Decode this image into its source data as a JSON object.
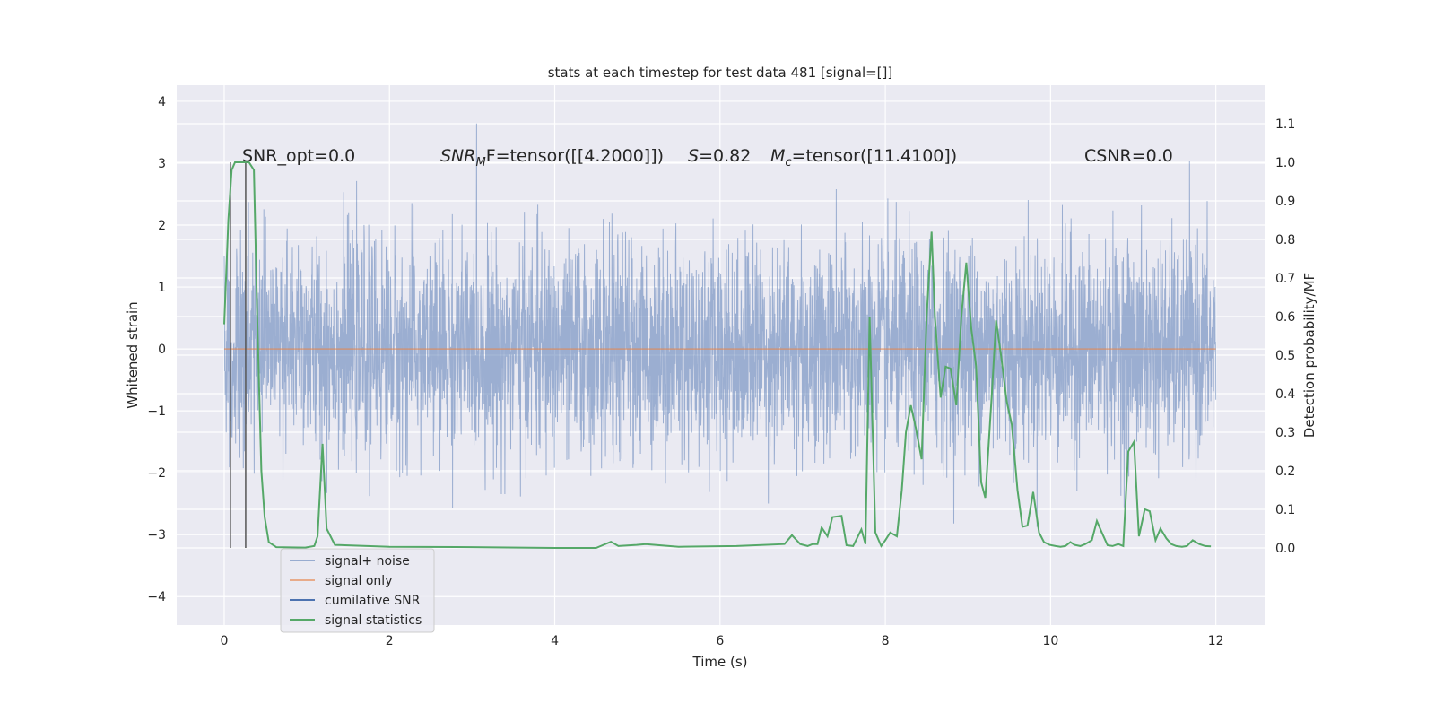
{
  "chart_data": {
    "type": "line",
    "title": "stats at each timestep for test data 481 [signal=[]]",
    "xlabel": "Time (s)",
    "ylabel": "Whitened strain",
    "ylabel_right": "Detection probability/MF",
    "xlim": [
      -0.575,
      12.59
    ],
    "ylim": [
      -4.46,
      4.26
    ],
    "ylim_right": [
      -0.2,
      1.2
    ],
    "x_ticks": [
      "0",
      "2",
      "4",
      "6",
      "8",
      "10",
      "12"
    ],
    "y_ticks": [
      "−4",
      "−3",
      "−2",
      "−1",
      "0",
      "1",
      "2",
      "3",
      "4"
    ],
    "y_ticks_right": [
      "0.0",
      "0.1",
      "0.2",
      "0.3",
      "0.4",
      "0.5",
      "0.6",
      "0.7",
      "0.8",
      "0.9",
      "1.0",
      "1.1"
    ],
    "grid": true,
    "legend_position": "lower-left",
    "annotations": {
      "snr_opt": "SNR_opt=0.0",
      "snr_mf_base": "SNR",
      "snr_mf_sub": "M",
      "snr_mf_rest": "F=tensor([[4.2000]])",
      "s_var": "S",
      "s_rest": "=0.82",
      "mc_base": "M",
      "mc_sub": "c",
      "mc_rest": "=tensor([11.4100])",
      "csnr": "CSNR=0.0"
    },
    "series": [
      {
        "name": "signal+ noise",
        "color": "#4c72b0",
        "alpha": 0.5,
        "y_range": [
          -4.1,
          3.9
        ],
        "x_range": [
          0,
          12
        ]
      },
      {
        "name": "signal only",
        "color": "#dd8452",
        "y": 0,
        "x_range": [
          0,
          12
        ]
      },
      {
        "name": "cumilative SNR",
        "color": "#4c72b0"
      },
      {
        "name": "signal statistics",
        "color": "#55a868",
        "axis": "right",
        "x": [
          0,
          0.05,
          0.09,
          0.13,
          0.3,
          0.36,
          0.4,
          0.45,
          0.49,
          0.54,
          0.63,
          0.98,
          1.09,
          1.13,
          1.19,
          1.24,
          1.34,
          2,
          3,
          4,
          4.5,
          4.68,
          4.77,
          4.99,
          5.1,
          5.5,
          6.2,
          6.78,
          6.87,
          6.97,
          7.06,
          7.12,
          7.18,
          7.23,
          7.3,
          7.36,
          7.47,
          7.53,
          7.61,
          7.71,
          7.76,
          7.81,
          7.88,
          7.95,
          8,
          8.06,
          8.14,
          8.2,
          8.25,
          8.31,
          8.37,
          8.44,
          8.5,
          8.56,
          8.6,
          8.67,
          8.73,
          8.79,
          8.86,
          8.92,
          8.98,
          9.04,
          9.1,
          9.16,
          9.21,
          9.29,
          9.34,
          9.4,
          9.47,
          9.53,
          9.6,
          9.66,
          9.72,
          9.79,
          9.86,
          9.92,
          9.99,
          10.06,
          10.12,
          10.18,
          10.24,
          10.29,
          10.36,
          10.42,
          10.5,
          10.56,
          10.62,
          10.69,
          10.75,
          10.82,
          10.88,
          10.94,
          11.01,
          11.07,
          11.14,
          11.2,
          11.27,
          11.33,
          11.4,
          11.46,
          11.52,
          11.59,
          11.65,
          11.72,
          11.8,
          11.87,
          11.94
        ],
        "y": [
          0.58,
          0.85,
          0.98,
          1.0,
          1.0,
          0.98,
          0.6,
          0.2,
          0.08,
          0.015,
          0.002,
          0.001,
          0.005,
          0.03,
          0.27,
          0.05,
          0.008,
          0.003,
          0.002,
          0.0,
          0.0,
          0.016,
          0.005,
          0.008,
          0.01,
          0.003,
          0.005,
          0.01,
          0.033,
          0.01,
          0.005,
          0.01,
          0.01,
          0.053,
          0.03,
          0.08,
          0.083,
          0.007,
          0.005,
          0.048,
          0.01,
          0.6,
          0.04,
          0.005,
          0.02,
          0.04,
          0.03,
          0.15,
          0.3,
          0.37,
          0.31,
          0.23,
          0.6,
          0.82,
          0.6,
          0.39,
          0.47,
          0.465,
          0.37,
          0.6,
          0.74,
          0.57,
          0.47,
          0.17,
          0.13,
          0.4,
          0.59,
          0.5,
          0.38,
          0.32,
          0.15,
          0.055,
          0.058,
          0.145,
          0.04,
          0.015,
          0.008,
          0.005,
          0.003,
          0.005,
          0.015,
          0.008,
          0.005,
          0.01,
          0.02,
          0.07,
          0.04,
          0.007,
          0.005,
          0.01,
          0.005,
          0.25,
          0.275,
          0.03,
          0.1,
          0.095,
          0.02,
          0.05,
          0.025,
          0.01,
          0.005,
          0.003,
          0.005,
          0.02,
          0.01,
          0.005,
          0.004
        ]
      }
    ],
    "vertical_markers": {
      "color": "#555555",
      "x": [
        0.075,
        0.26
      ]
    }
  }
}
